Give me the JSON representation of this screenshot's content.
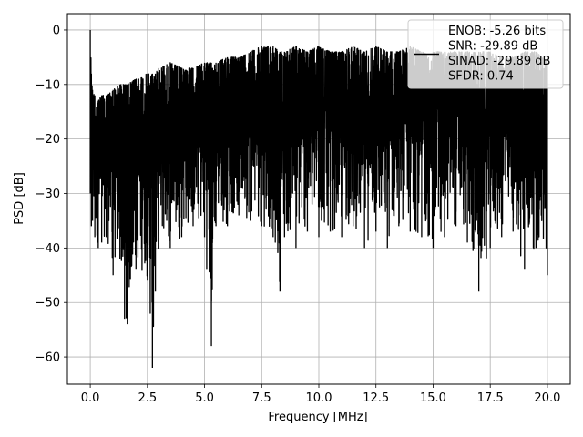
{
  "chart_data": {
    "type": "line",
    "title": "",
    "xlabel": "Frequency [MHz]",
    "ylabel": "PSD [dB]",
    "xlim": [
      -1.0,
      21.0
    ],
    "ylim": [
      -65.0,
      3.0
    ],
    "xticks": [
      0.0,
      2.5,
      5.0,
      7.5,
      10.0,
      12.5,
      15.0,
      17.5,
      20.0
    ],
    "xtick_labels": [
      "0.0",
      "2.5",
      "5.0",
      "7.5",
      "10.0",
      "12.5",
      "15.0",
      "17.5",
      "20.0"
    ],
    "yticks": [
      0,
      -10,
      -20,
      -30,
      -40,
      -50,
      -60
    ],
    "ytick_labels": [
      "0",
      "−10",
      "−20",
      "−30",
      "−40",
      "−50",
      "−60"
    ],
    "grid": true,
    "legend_position": "top-right",
    "line_color": "#000000",
    "legend": [
      "ENOB: -5.26 bits",
      "SNR: -29.89 dB",
      "SINAD: -29.89 dB",
      "SFDR: 0.74"
    ],
    "series": [
      {
        "x": [
          0.0,
          0.05,
          0.1,
          0.2,
          0.35,
          0.5,
          0.7,
          1.0,
          1.3,
          1.5,
          1.62,
          2.0,
          2.5,
          2.72,
          2.85,
          3.0,
          3.5,
          4.0,
          4.5,
          5.0,
          5.3,
          5.5,
          6.0,
          6.5,
          7.0,
          7.5,
          8.0,
          8.3,
          8.5,
          9.0,
          9.5,
          10.0,
          10.5,
          11.0,
          11.5,
          12.0,
          12.5,
          13.0,
          13.5,
          14.0,
          14.5,
          15.0,
          15.5,
          16.0,
          16.5,
          17.0,
          17.5,
          18.0,
          18.5,
          19.0,
          19.5,
          20.0
        ],
        "y_max": [
          0,
          -8,
          -11,
          -12,
          -13,
          -12,
          -12,
          -11,
          -10,
          -10,
          -10,
          -9,
          -8,
          -8,
          -8,
          -7,
          -6,
          -7,
          -7,
          -6,
          -6,
          -6,
          -5,
          -5,
          -4,
          -3,
          -3,
          -4,
          -4,
          -3,
          -4,
          -3,
          -4,
          -4,
          -3,
          -4,
          -3,
          -4,
          -4,
          -3,
          -4,
          -4,
          -4,
          -4,
          -4,
          -4,
          -4,
          -5,
          -5,
          -4,
          -4,
          -6
        ],
        "y_min": [
          -30,
          -36,
          -35,
          -38,
          -40,
          -39,
          -38,
          -45,
          -42,
          -53,
          -54,
          -44,
          -46,
          -62,
          -48,
          -40,
          -40,
          -38,
          -36,
          -38,
          -58,
          -36,
          -36,
          -34,
          -35,
          -36,
          -38,
          -48,
          -38,
          -40,
          -37,
          -38,
          -37,
          -38,
          -36,
          -40,
          -37,
          -40,
          -36,
          -37,
          -38,
          -40,
          -38,
          -36,
          -39,
          -48,
          -40,
          -38,
          -37,
          -44,
          -40,
          -45
        ]
      }
    ]
  }
}
